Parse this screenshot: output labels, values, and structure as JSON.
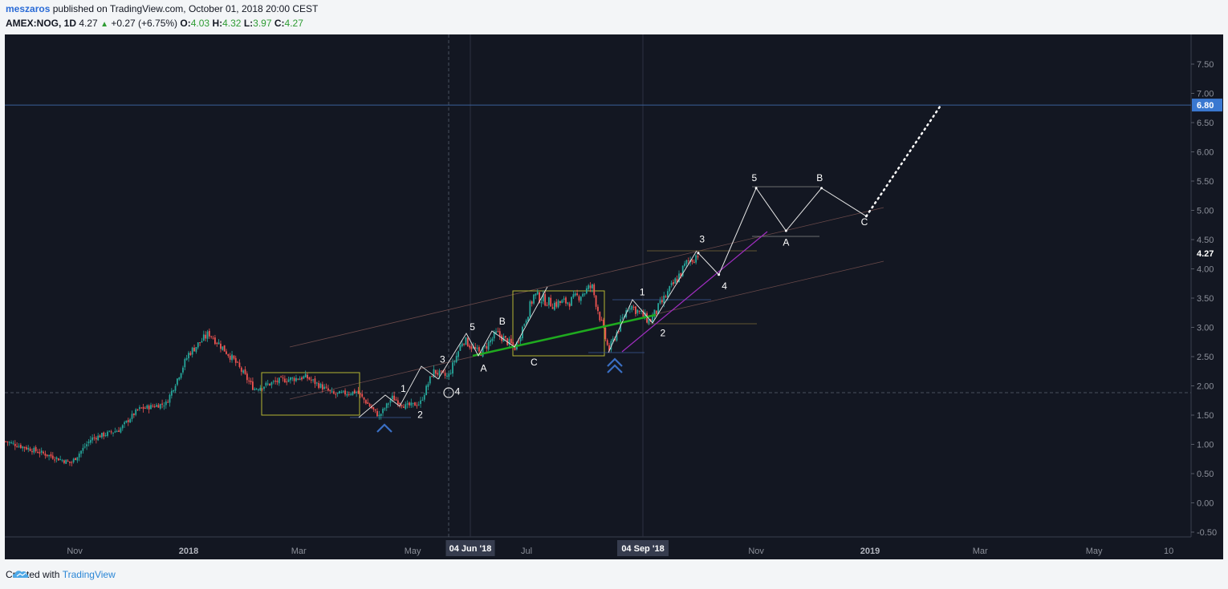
{
  "header": {
    "user": "meszaros",
    "published": "published on TradingView.com, October 01, 2018 20:00 CEST",
    "symbol": "AMEX:NOG, 1D",
    "last": "4.27",
    "change": "+0.27 (+6.75%)",
    "o_label": "O:",
    "o": "4.03",
    "h_label": "H:",
    "h": "4.32",
    "l_label": "L:",
    "l": "3.97",
    "c_label": "C:",
    "c": "4.27"
  },
  "footer": {
    "created": "Created with",
    "brand": "TradingView"
  },
  "colors": {
    "background": "#131722",
    "up": "#26a69a",
    "down": "#ef5350",
    "price_badge": "#3a78d0",
    "trend_green": "#1faa1f",
    "magenta": "#a02ec0",
    "box": "#b5b531",
    "marker": "#3a6fc4"
  },
  "chart_data": {
    "type": "candlestick",
    "symbol": "AMEX:NOG",
    "interval": "1D",
    "ylim": [
      -0.6,
      8.0
    ],
    "y_ticks": [
      "7.50",
      "7.00",
      "6.50",
      "6.00",
      "5.50",
      "5.00",
      "4.50",
      "4.00",
      "3.50",
      "3.00",
      "2.50",
      "2.00",
      "1.50",
      "1.00",
      "0.50",
      "0.00",
      "-0.50"
    ],
    "x_ticks": [
      "Nov",
      "2018",
      "Mar",
      "May",
      "Jul",
      "Nov",
      "2019",
      "Mar",
      "May",
      "10"
    ],
    "date_labels": [
      "04 Jun '18",
      "04 Sep '18"
    ],
    "price_labels": {
      "target": "6.80",
      "last": "4.27"
    },
    "price_path": [
      [
        "2017-09-25",
        1.05
      ],
      [
        "2017-10-10",
        0.9
      ],
      [
        "2017-10-30",
        0.68
      ],
      [
        "2017-11-10",
        1.1
      ],
      [
        "2017-11-25",
        1.25
      ],
      [
        "2017-12-05",
        1.6
      ],
      [
        "2017-12-20",
        1.7
      ],
      [
        "2018-01-01",
        2.55
      ],
      [
        "2018-01-12",
        2.9
      ],
      [
        "2018-01-25",
        2.45
      ],
      [
        "2018-02-05",
        1.95
      ],
      [
        "2018-02-20",
        2.1
      ],
      [
        "2018-03-05",
        2.15
      ],
      [
        "2018-03-20",
        1.85
      ],
      [
        "2018-04-01",
        1.9
      ],
      [
        "2018-04-13",
        1.48
      ],
      [
        "2018-04-20",
        1.8
      ],
      [
        "2018-04-27",
        1.65
      ],
      [
        "2018-05-05",
        1.7
      ],
      [
        "2018-05-12",
        2.25
      ],
      [
        "2018-05-20",
        2.15
      ],
      [
        "2018-05-28",
        2.8
      ],
      [
        "2018-06-06",
        2.55
      ],
      [
        "2018-06-15",
        2.9
      ],
      [
        "2018-06-25",
        2.65
      ],
      [
        "2018-07-05",
        3.55
      ],
      [
        "2018-07-15",
        3.4
      ],
      [
        "2018-07-25",
        3.45
      ],
      [
        "2018-08-05",
        3.7
      ],
      [
        "2018-08-14",
        2.6
      ],
      [
        "2018-08-25",
        3.4
      ],
      [
        "2018-09-05",
        3.1
      ],
      [
        "2018-09-15",
        3.6
      ],
      [
        "2018-09-25",
        4.1
      ],
      [
        "2018-10-01",
        4.27
      ]
    ],
    "wave_labels": [
      {
        "label": "1",
        "date": "2018-04-26",
        "price": 1.9
      },
      {
        "label": "2",
        "date": "2018-05-05",
        "price": 1.45
      },
      {
        "label": "3",
        "date": "2018-05-17",
        "price": 2.4
      },
      {
        "label": "4",
        "date": "2018-05-25",
        "price": 1.85
      },
      {
        "label": "5",
        "date": "2018-06-02",
        "price": 2.95
      },
      {
        "label": "A",
        "date": "2018-06-08",
        "price": 2.25
      },
      {
        "label": "B",
        "date": "2018-06-18",
        "price": 3.05
      },
      {
        "label": "C",
        "date": "2018-07-05",
        "price": 2.35
      },
      {
        "label": "1",
        "date": "2018-09-01",
        "price": 3.55
      },
      {
        "label": "2",
        "date": "2018-09-12",
        "price": 2.85
      },
      {
        "label": "3",
        "date": "2018-10-03",
        "price": 4.45
      },
      {
        "label": "4",
        "date": "2018-10-15",
        "price": 3.65
      },
      {
        "label": "5",
        "date": "2018-10-31",
        "price": 5.5
      },
      {
        "label": "A",
        "date": "2018-11-17",
        "price": 4.4
      },
      {
        "label": "B",
        "date": "2018-12-05",
        "price": 5.5
      },
      {
        "label": "C",
        "date": "2018-12-29",
        "price": 4.75
      }
    ],
    "projection": [
      [
        "2018-10-01",
        4.27
      ],
      [
        "2018-10-12",
        3.9
      ],
      [
        "2018-11-01",
        5.38
      ],
      [
        "2018-11-17",
        4.65
      ],
      [
        "2018-12-06",
        5.38
      ],
      [
        "2018-12-30",
        4.9
      ]
    ],
    "projection_dotted": [
      [
        "2018-12-30",
        4.9
      ],
      [
        "2019-02-08",
        6.8
      ]
    ]
  }
}
